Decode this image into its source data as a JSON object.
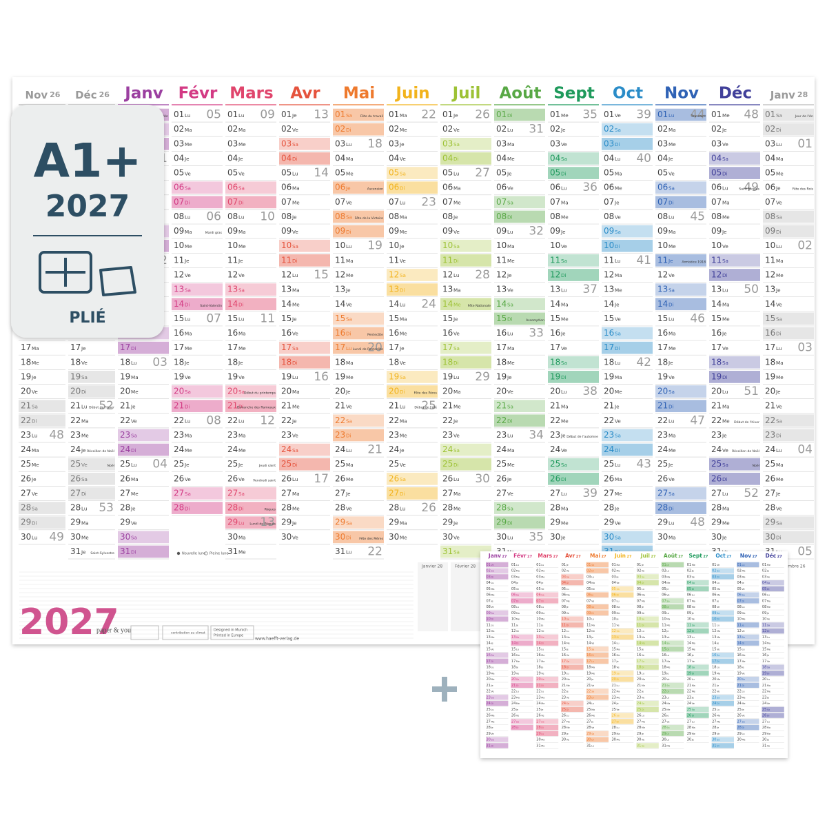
{
  "badge": {
    "size": "A1+",
    "year": "2027",
    "fold": "PLIÉ"
  },
  "poster": {
    "year_title": "2027",
    "brand": "paper & you",
    "url": "www.haefft-verlag.de",
    "logos": [
      "contribution au climat",
      "Designed in Munich",
      "Printed in Europe"
    ],
    "legend": [
      "Nouvelle lune",
      "Pleine lune"
    ],
    "notes_months": [
      "Janvier 28",
      "Février 28",
      "Décembre 26"
    ]
  },
  "mini": {
    "year": "27"
  },
  "day_numbers": [
    "01",
    "02",
    "03",
    "04",
    "05",
    "06",
    "07",
    "08",
    "09",
    "10",
    "11",
    "12",
    "13",
    "14",
    "15",
    "16",
    "17",
    "18",
    "19",
    "20",
    "21",
    "22",
    "23",
    "24",
    "25",
    "26",
    "27",
    "28",
    "29",
    "30",
    "31"
  ],
  "months": [
    {
      "name": "Nov",
      "year": "26",
      "side": true,
      "color": "#9a9a9a",
      "weekdays": [
        "Di",
        "Lu",
        "Ma",
        "Me",
        "Je",
        "Ve",
        "Sa",
        "Di",
        "Lu",
        "Ma",
        "Me",
        "Je",
        "Ve",
        "Sa",
        "Di",
        "Lu",
        "Ma",
        "Me",
        "Je",
        "Ve",
        "Sa",
        "Di",
        "Lu",
        "Ma",
        "Me",
        "Je",
        "Ve",
        "Sa",
        "Di",
        "Lu"
      ],
      "weeks": [
        "45",
        "46",
        "47",
        "48",
        "49"
      ],
      "holidays": [
        {
          "date": "01",
          "label": "Toussaint",
          "off": true
        },
        {
          "date": "11",
          "label": "Armistice 1918",
          "off": true
        }
      ]
    },
    {
      "name": "Déc",
      "year": "26",
      "side": true,
      "color": "#9a9a9a",
      "weekdays": [
        "Ma",
        "Me",
        "Je",
        "Ve",
        "Sa",
        "Di",
        "Lu",
        "Ma",
        "Me",
        "Je",
        "Ve",
        "Sa",
        "Di",
        "Lu",
        "Ma",
        "Me",
        "Je",
        "Ve",
        "Sa",
        "Di",
        "Lu",
        "Ma",
        "Me",
        "Je",
        "Ve",
        "Sa",
        "Di",
        "Lu",
        "Ma",
        "Me",
        "Je"
      ],
      "weeks": [
        "49",
        "50",
        "51",
        "52",
        "53"
      ],
      "holidays": [
        {
          "date": "21",
          "label": "Début de l'hiver"
        },
        {
          "date": "24",
          "label": "Réveillon de Noël"
        },
        {
          "date": "25",
          "label": "Noël",
          "off": true
        },
        {
          "date": "31",
          "label": "Saint-Sylvestre"
        }
      ]
    },
    {
      "name": "Janv",
      "color": "#9b3fa0",
      "weekdays": [
        "Ve",
        "Sa",
        "Di",
        "Lu",
        "Ma",
        "Me",
        "Je",
        "Ve",
        "Sa",
        "Di",
        "Lu",
        "Ma",
        "Me",
        "Je",
        "Ve",
        "Sa",
        "Di",
        "Lu",
        "Ma",
        "Me",
        "Je",
        "Ve",
        "Sa",
        "Di",
        "Lu",
        "Ma",
        "Me",
        "Je",
        "Ve",
        "Sa",
        "Di"
      ],
      "weeks": [
        "01",
        "02",
        "03",
        "04"
      ],
      "holidays": [
        {
          "date": "01",
          "label": "Jour de l'An",
          "off": true
        }
      ]
    },
    {
      "name": "Févr",
      "color": "#d33a84",
      "weekdays": [
        "Lu",
        "Ma",
        "Me",
        "Je",
        "Ve",
        "Sa",
        "Di",
        "Lu",
        "Ma",
        "Me",
        "Je",
        "Ve",
        "Sa",
        "Di",
        "Lu",
        "Ma",
        "Me",
        "Je",
        "Ve",
        "Sa",
        "Di",
        "Lu",
        "Ma",
        "Me",
        "Je",
        "Ve",
        "Sa",
        "Di"
      ],
      "weeks": [
        "05",
        "06",
        "07",
        "08"
      ],
      "holidays": [
        {
          "date": "09",
          "label": "Mardi gras"
        },
        {
          "date": "14",
          "label": "Saint-Valentin"
        }
      ]
    },
    {
      "name": "Mars",
      "color": "#e0456c",
      "weekdays": [
        "Lu",
        "Ma",
        "Me",
        "Je",
        "Ve",
        "Sa",
        "Di",
        "Lu",
        "Ma",
        "Me",
        "Je",
        "Ve",
        "Sa",
        "Di",
        "Lu",
        "Ma",
        "Me",
        "Je",
        "Ve",
        "Sa",
        "Di",
        "Lu",
        "Ma",
        "Me",
        "Je",
        "Ve",
        "Sa",
        "Di",
        "Lu",
        "Ma",
        "Me"
      ],
      "weeks": [
        "09",
        "10",
        "11",
        "12",
        "13"
      ],
      "holidays": [
        {
          "date": "20",
          "label": "Début du printemps"
        },
        {
          "date": "21",
          "label": "Dimanche des Rameaux"
        },
        {
          "date": "25",
          "label": "Jeudi saint"
        },
        {
          "date": "26",
          "label": "Vendredi saint"
        },
        {
          "date": "28",
          "label": "Pâques",
          "off": true
        },
        {
          "date": "29",
          "label": "Lundi de Pâques",
          "off": true
        }
      ]
    },
    {
      "name": "Avr",
      "color": "#e5533d",
      "weekdays": [
        "Je",
        "Ve",
        "Sa",
        "Di",
        "Lu",
        "Ma",
        "Me",
        "Je",
        "Ve",
        "Sa",
        "Di",
        "Lu",
        "Ma",
        "Me",
        "Je",
        "Ve",
        "Sa",
        "Di",
        "Lu",
        "Ma",
        "Me",
        "Je",
        "Ve",
        "Sa",
        "Di",
        "Lu",
        "Ma",
        "Me",
        "Je",
        "Ve"
      ],
      "weeks": [
        "13",
        "14",
        "15",
        "16",
        "17"
      ]
    },
    {
      "name": "Mai",
      "color": "#ee7a2e",
      "weekdays": [
        "Sa",
        "Di",
        "Lu",
        "Ma",
        "Me",
        "Je",
        "Ve",
        "Sa",
        "Di",
        "Lu",
        "Ma",
        "Me",
        "Je",
        "Ve",
        "Sa",
        "Di",
        "Lu",
        "Ma",
        "Me",
        "Je",
        "Ve",
        "Sa",
        "Di",
        "Lu",
        "Ma",
        "Me",
        "Je",
        "Ve",
        "Sa",
        "Di",
        "Lu"
      ],
      "weeks": [
        "18",
        "19",
        "20",
        "21",
        "22"
      ],
      "holidays": [
        {
          "date": "01",
          "label": "Fête du travail",
          "off": true
        },
        {
          "date": "06",
          "label": "Ascension",
          "off": true
        },
        {
          "date": "08",
          "label": "Fête de la Victoire",
          "off": true
        },
        {
          "date": "16",
          "label": "Pentecôte",
          "off": true
        },
        {
          "date": "17",
          "label": "Lundi de Pentecôte",
          "off": true
        },
        {
          "date": "30",
          "label": "Fête des Mères"
        }
      ]
    },
    {
      "name": "Juin",
      "color": "#f2b31c",
      "weekdays": [
        "Ma",
        "Me",
        "Je",
        "Ve",
        "Sa",
        "Di",
        "Lu",
        "Ma",
        "Me",
        "Je",
        "Ve",
        "Sa",
        "Di",
        "Lu",
        "Ma",
        "Me",
        "Je",
        "Ve",
        "Sa",
        "Di",
        "Lu",
        "Ma",
        "Me",
        "Je",
        "Ve",
        "Sa",
        "Di",
        "Lu",
        "Ma",
        "Me"
      ],
      "weeks": [
        "22",
        "23",
        "24",
        "25",
        "26"
      ],
      "holidays": [
        {
          "date": "20",
          "label": "Fête des Pères"
        },
        {
          "date": "21",
          "label": "Début de l'été"
        }
      ]
    },
    {
      "name": "Juil",
      "color": "#9dc235",
      "weekdays": [
        "Je",
        "Ve",
        "Sa",
        "Di",
        "Lu",
        "Ma",
        "Me",
        "Je",
        "Ve",
        "Sa",
        "Di",
        "Lu",
        "Ma",
        "Me",
        "Je",
        "Ve",
        "Sa",
        "Di",
        "Lu",
        "Ma",
        "Me",
        "Je",
        "Ve",
        "Sa",
        "Di",
        "Lu",
        "Ma",
        "Me",
        "Je",
        "Ve",
        "Sa"
      ],
      "weeks": [
        "26",
        "27",
        "28",
        "29",
        "30"
      ],
      "holidays": [
        {
          "date": "14",
          "label": "Fête Nationale",
          "off": true
        }
      ]
    },
    {
      "name": "Août",
      "color": "#58a845",
      "weekdays": [
        "Di",
        "Lu",
        "Ma",
        "Me",
        "Je",
        "Ve",
        "Sa",
        "Di",
        "Lu",
        "Ma",
        "Me",
        "Je",
        "Ve",
        "Sa",
        "Di",
        "Lu",
        "Ma",
        "Me",
        "Je",
        "Ve",
        "Sa",
        "Di",
        "Lu",
        "Ma",
        "Me",
        "Je",
        "Ve",
        "Sa",
        "Di",
        "Lu",
        "Ma"
      ],
      "weeks": [
        "31",
        "32",
        "33",
        "34",
        "35"
      ],
      "holidays": [
        {
          "date": "15",
          "label": "Assomption",
          "off": true
        }
      ]
    },
    {
      "name": "Sept",
      "color": "#1f9a5c",
      "weekdays": [
        "Me",
        "Je",
        "Ve",
        "Sa",
        "Di",
        "Lu",
        "Ma",
        "Me",
        "Je",
        "Ve",
        "Sa",
        "Di",
        "Lu",
        "Ma",
        "Me",
        "Je",
        "Ve",
        "Sa",
        "Di",
        "Lu",
        "Ma",
        "Me",
        "Je",
        "Ve",
        "Sa",
        "Di",
        "Lu",
        "Ma",
        "Me",
        "Je"
      ],
      "weeks": [
        "35",
        "36",
        "37",
        "38",
        "39"
      ],
      "holidays": [
        {
          "date": "23",
          "label": "Début de l'automne"
        }
      ]
    },
    {
      "name": "Oct",
      "color": "#2a8cc8",
      "weekdays": [
        "Ve",
        "Sa",
        "Di",
        "Lu",
        "Ma",
        "Me",
        "Je",
        "Ve",
        "Sa",
        "Di",
        "Lu",
        "Ma",
        "Me",
        "Je",
        "Ve",
        "Sa",
        "Di",
        "Lu",
        "Ma",
        "Me",
        "Je",
        "Ve",
        "Sa",
        "Di",
        "Lu",
        "Ma",
        "Me",
        "Je",
        "Ve",
        "Sa",
        "Di"
      ],
      "weeks": [
        "39",
        "40",
        "41",
        "42",
        "43"
      ]
    },
    {
      "name": "Nov",
      "color": "#2f62b5",
      "weekdays": [
        "Lu",
        "Ma",
        "Me",
        "Je",
        "Ve",
        "Sa",
        "Di",
        "Lu",
        "Ma",
        "Me",
        "Je",
        "Ve",
        "Sa",
        "Di",
        "Lu",
        "Ma",
        "Me",
        "Je",
        "Ve",
        "Sa",
        "Di",
        "Lu",
        "Ma",
        "Me",
        "Je",
        "Ve",
        "Sa",
        "Di",
        "Lu",
        "Ma"
      ],
      "weeks": [
        "44",
        "45",
        "46",
        "47",
        "48"
      ],
      "holidays": [
        {
          "date": "01",
          "label": "Toussaint",
          "off": true
        },
        {
          "date": "11",
          "label": "Armistice 1918",
          "off": true
        }
      ]
    },
    {
      "name": "Déc",
      "color": "#41409a",
      "weekdays": [
        "Me",
        "Je",
        "Ve",
        "Sa",
        "Di",
        "Lu",
        "Ma",
        "Me",
        "Je",
        "Ve",
        "Sa",
        "Di",
        "Lu",
        "Ma",
        "Me",
        "Je",
        "Ve",
        "Sa",
        "Di",
        "Lu",
        "Ma",
        "Me",
        "Je",
        "Ve",
        "Sa",
        "Di",
        "Lu",
        "Ma",
        "Me",
        "Je",
        "Ve"
      ],
      "weeks": [
        "48",
        "49",
        "50",
        "51",
        "52"
      ],
      "holidays": [
        {
          "date": "06",
          "label": "Saint Nicolas"
        },
        {
          "date": "22",
          "label": "Début de l'hiver"
        },
        {
          "date": "24",
          "label": "Réveillon de Noël"
        },
        {
          "date": "25",
          "label": "Noël",
          "off": true
        },
        {
          "date": "31",
          "label": "Saint-Sylvestre"
        }
      ]
    },
    {
      "name": "Janv",
      "year": "28",
      "side": true,
      "color": "#9a9a9a",
      "weekdays": [
        "Sa",
        "Di",
        "Lu",
        "Ma",
        "Me",
        "Je",
        "Ve",
        "Sa",
        "Di",
        "Lu",
        "Ma",
        "Me",
        "Je",
        "Ve",
        "Sa",
        "Di",
        "Lu",
        "Ma",
        "Me",
        "Je",
        "Ve",
        "Sa",
        "Di",
        "Lu",
        "Ma",
        "Me",
        "Je",
        "Ve",
        "Sa",
        "Di",
        "Lu"
      ],
      "weeks": [
        "01",
        "02",
        "03",
        "04",
        "05"
      ],
      "holidays": [
        {
          "date": "01",
          "label": "Jour de l'An",
          "off": true
        },
        {
          "date": "06",
          "label": "Fête des Rois"
        }
      ]
    }
  ]
}
